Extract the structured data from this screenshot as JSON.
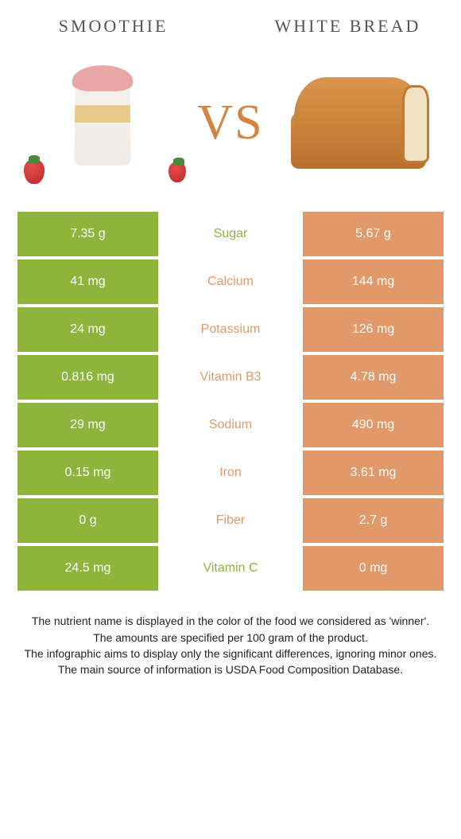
{
  "colors": {
    "left": "#8eb43c",
    "right": "#e2996a",
    "vs": "#d5833f"
  },
  "header": {
    "left_title": "SMOOTHIE",
    "right_title": "WHITE BREAD",
    "vs_label": "VS"
  },
  "rows": [
    {
      "left": "7.35 g",
      "label": "Sugar",
      "right": "5.67 g",
      "winner": "left"
    },
    {
      "left": "41 mg",
      "label": "Calcium",
      "right": "144 mg",
      "winner": "right"
    },
    {
      "left": "24 mg",
      "label": "Potassium",
      "right": "126 mg",
      "winner": "right"
    },
    {
      "left": "0.816 mg",
      "label": "Vitamin B3",
      "right": "4.78 mg",
      "winner": "right"
    },
    {
      "left": "29 mg",
      "label": "Sodium",
      "right": "490 mg",
      "winner": "right"
    },
    {
      "left": "0.15 mg",
      "label": "Iron",
      "right": "3.61 mg",
      "winner": "right"
    },
    {
      "left": "0 g",
      "label": "Fiber",
      "right": "2.7 g",
      "winner": "right"
    },
    {
      "left": "24.5 mg",
      "label": "Vitamin C",
      "right": "0 mg",
      "winner": "left"
    }
  ],
  "footnotes": [
    "The nutrient name is displayed in the color of the food we considered as 'winner'.",
    "The amounts are specified per 100 gram of the product.",
    "The infographic aims to display only the significant differences, ignoring minor ones.",
    "The main source of information is USDA Food Composition Database."
  ]
}
